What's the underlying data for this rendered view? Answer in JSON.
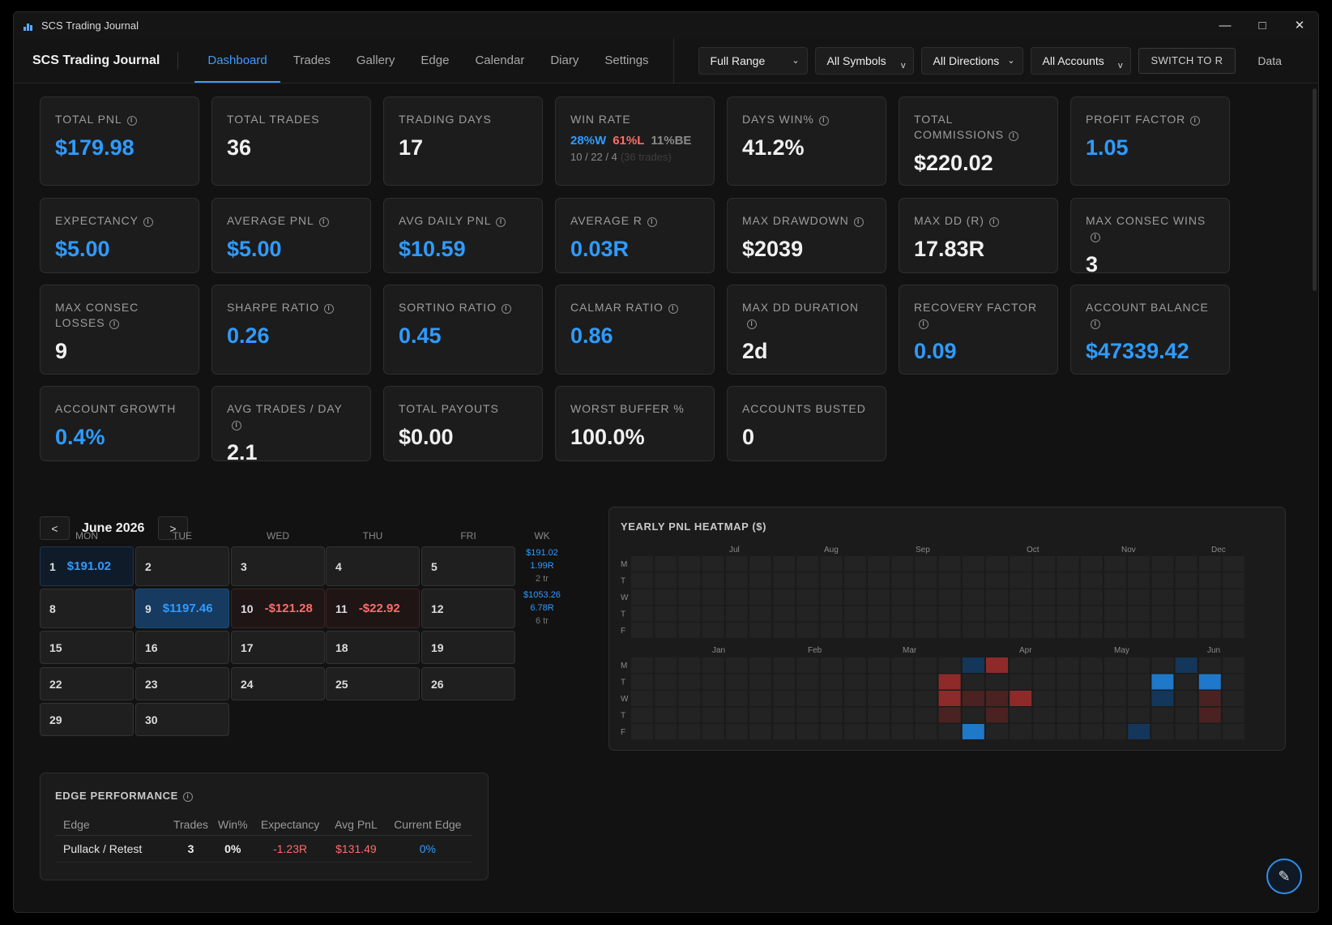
{
  "window": {
    "title": "SCS Trading Journal"
  },
  "nav": {
    "brand": "SCS Trading Journal",
    "tabs": [
      "Dashboard",
      "Trades",
      "Gallery",
      "Edge",
      "Calendar",
      "Diary",
      "Settings"
    ],
    "active_tab": "Dashboard"
  },
  "filters": {
    "range": "Full Range",
    "symbols": "All Symbols",
    "directions": "All Directions",
    "accounts": "All Accounts",
    "switch_label": "SWITCH TO R",
    "data_label": "Data"
  },
  "stats": [
    {
      "label": "TOTAL PNL",
      "value": "$179.98",
      "info": true,
      "color": "#2f9bff"
    },
    {
      "label": "TOTAL TRADES",
      "value": "36",
      "info": false,
      "color": "#f0f0f0"
    },
    {
      "label": "TRADING DAYS",
      "value": "17",
      "info": false,
      "color": "#f0f0f0"
    },
    {
      "label": "WIN RATE",
      "value": "",
      "info": false,
      "color": "#f0f0f0"
    },
    {
      "label": "DAYS WIN%",
      "value": "41.2%",
      "info": true,
      "color": "#f0f0f0"
    },
    {
      "label": "TOTAL COMMISSIONS",
      "value": "$220.02",
      "info": true,
      "color": "#f0f0f0"
    },
    {
      "label": "PROFIT FACTOR",
      "value": "1.05",
      "info": true,
      "color": "#2f9bff"
    },
    {
      "label": "EXPECTANCY",
      "value": "$5.00",
      "info": true,
      "color": "#2f9bff"
    },
    {
      "label": "AVERAGE PNL",
      "value": "$5.00",
      "info": true,
      "color": "#2f9bff"
    },
    {
      "label": "AVG DAILY PNL",
      "value": "$10.59",
      "info": true,
      "color": "#2f9bff"
    },
    {
      "label": "AVERAGE R",
      "value": "0.03R",
      "info": true,
      "color": "#2f9bff"
    },
    {
      "label": "MAX DRAWDOWN",
      "value": "$2039",
      "info": true,
      "color": "#f0f0f0"
    },
    {
      "label": "MAX DD (R)",
      "value": "17.83R",
      "info": true,
      "color": "#f0f0f0"
    },
    {
      "label": "MAX CONSEC WINS",
      "value": "3",
      "info": true,
      "color": "#f0f0f0"
    },
    {
      "label": "MAX CONSEC LOSSES",
      "value": "9",
      "info": true,
      "color": "#f0f0f0"
    },
    {
      "label": "SHARPE RATIO",
      "value": "0.26",
      "info": true,
      "color": "#2f9bff"
    },
    {
      "label": "SORTINO RATIO",
      "value": "0.45",
      "info": true,
      "color": "#2f9bff"
    },
    {
      "label": "CALMAR RATIO",
      "value": "0.86",
      "info": true,
      "color": "#2f9bff"
    },
    {
      "label": "MAX DD DURATION",
      "value": "2d",
      "info": true,
      "color": "#f0f0f0"
    },
    {
      "label": "RECOVERY FACTOR",
      "value": "0.09",
      "info": true,
      "color": "#2f9bff"
    },
    {
      "label": "ACCOUNT BALANCE",
      "value": "$47339.42",
      "info": true,
      "color": "#2f9bff"
    },
    {
      "label": "ACCOUNT GROWTH",
      "value": "0.4%",
      "info": false,
      "color": "#2f9bff"
    },
    {
      "label": "AVG TRADES / DAY",
      "value": "2.1",
      "info": true,
      "color": "#f0f0f0"
    },
    {
      "label": "TOTAL PAYOUTS",
      "value": "$0.00",
      "info": false,
      "color": "#f0f0f0"
    },
    {
      "label": "WORST BUFFER %",
      "value": "100.0%",
      "info": false,
      "color": "#f0f0f0"
    },
    {
      "label": "ACCOUNTS BUSTED",
      "value": "0",
      "info": false,
      "color": "#f0f0f0"
    }
  ],
  "win_rate": {
    "win": "28%W",
    "loss": "61%L",
    "be": "11%BE",
    "counts": "10 / 22 / 4",
    "trades": "(36 trades)"
  },
  "calendar": {
    "prev": "<",
    "next": ">",
    "month": "June 2026",
    "weekdays": [
      "MON",
      "TUE",
      "WED",
      "THU",
      "FRI"
    ],
    "wk_label": "WK",
    "weeks": [
      {
        "days": [
          {
            "d": "1",
            "pnl": "$191.02",
            "kind": "pos-light"
          },
          {
            "d": "2",
            "pnl": "",
            "kind": ""
          },
          {
            "d": "3",
            "pnl": "",
            "kind": ""
          },
          {
            "d": "4",
            "pnl": "",
            "kind": ""
          },
          {
            "d": "5",
            "pnl": "",
            "kind": ""
          }
        ],
        "wk": {
          "pnl": "$191.02",
          "r": "1.99R",
          "tr": "2 tr"
        }
      },
      {
        "days": [
          {
            "d": "8",
            "pnl": "",
            "kind": ""
          },
          {
            "d": "9",
            "pnl": "$1197.46",
            "kind": "pos-strong"
          },
          {
            "d": "10",
            "pnl": "-$121.28",
            "kind": "neg"
          },
          {
            "d": "11",
            "pnl": "-$22.92",
            "kind": "neg"
          },
          {
            "d": "12",
            "pnl": "",
            "kind": ""
          }
        ],
        "wk": {
          "pnl": "$1053.26",
          "r": "6.78R",
          "tr": "6 tr"
        }
      },
      {
        "days": [
          {
            "d": "15",
            "pnl": "",
            "kind": ""
          },
          {
            "d": "16",
            "pnl": "",
            "kind": ""
          },
          {
            "d": "17",
            "pnl": "",
            "kind": ""
          },
          {
            "d": "18",
            "pnl": "",
            "kind": ""
          },
          {
            "d": "19",
            "pnl": "",
            "kind": ""
          }
        ],
        "wk": null
      },
      {
        "days": [
          {
            "d": "22",
            "pnl": "",
            "kind": ""
          },
          {
            "d": "23",
            "pnl": "",
            "kind": ""
          },
          {
            "d": "24",
            "pnl": "",
            "kind": ""
          },
          {
            "d": "25",
            "pnl": "",
            "kind": ""
          },
          {
            "d": "26",
            "pnl": "",
            "kind": ""
          }
        ],
        "wk": null
      },
      {
        "days": [
          {
            "d": "29",
            "pnl": "",
            "kind": ""
          },
          {
            "d": "30",
            "pnl": "",
            "kind": ""
          }
        ],
        "wk": null
      }
    ]
  },
  "heatmap": {
    "title": "YEARLY PNL HEATMAP ($)",
    "row_labels": [
      "M",
      "T",
      "W",
      "T",
      "F"
    ],
    "top_months": [
      "Jul",
      "Aug",
      "Sep",
      "Oct",
      "Nov",
      "Dec"
    ],
    "bottom_months": [
      "Jan",
      "Feb",
      "Mar",
      "Apr",
      "May",
      "Jun"
    ],
    "colors": {
      "empty": "#232323",
      "pos": "#1f78c8",
      "pos_dark": "#13365a",
      "neg": "#8f2a2a",
      "neg_dark": "#4a2222"
    },
    "bottom_cells": [
      {
        "col": 14,
        "row": 0,
        "c": "pos_dark"
      },
      {
        "col": 15,
        "row": 0,
        "c": "neg"
      },
      {
        "col": 13,
        "row": 1,
        "c": "neg"
      },
      {
        "col": 13,
        "row": 2,
        "c": "neg"
      },
      {
        "col": 14,
        "row": 2,
        "c": "neg_dark"
      },
      {
        "col": 15,
        "row": 2,
        "c": "neg_dark"
      },
      {
        "col": 16,
        "row": 2,
        "c": "neg"
      },
      {
        "col": 13,
        "row": 3,
        "c": "neg_dark"
      },
      {
        "col": 15,
        "row": 3,
        "c": "neg_dark"
      },
      {
        "col": 14,
        "row": 4,
        "c": "pos"
      },
      {
        "col": 23,
        "row": 0,
        "c": "pos_dark"
      },
      {
        "col": 22,
        "row": 1,
        "c": "pos"
      },
      {
        "col": 24,
        "row": 1,
        "c": "pos"
      },
      {
        "col": 22,
        "row": 2,
        "c": "pos_dark"
      },
      {
        "col": 24,
        "row": 2,
        "c": "neg_dark"
      },
      {
        "col": 24,
        "row": 3,
        "c": "neg_dark"
      },
      {
        "col": 21,
        "row": 4,
        "c": "pos_dark"
      }
    ]
  },
  "edge": {
    "title": "EDGE PERFORMANCE",
    "headers": [
      "Edge",
      "Trades",
      "Win%",
      "Expectancy",
      "Avg PnL",
      "Current Edge"
    ],
    "rows": [
      {
        "edge": "Pullack / Retest",
        "trades": "3",
        "win": "0%",
        "exp": "-1.23R",
        "avg": "$131.49",
        "cur": "0%"
      }
    ]
  }
}
